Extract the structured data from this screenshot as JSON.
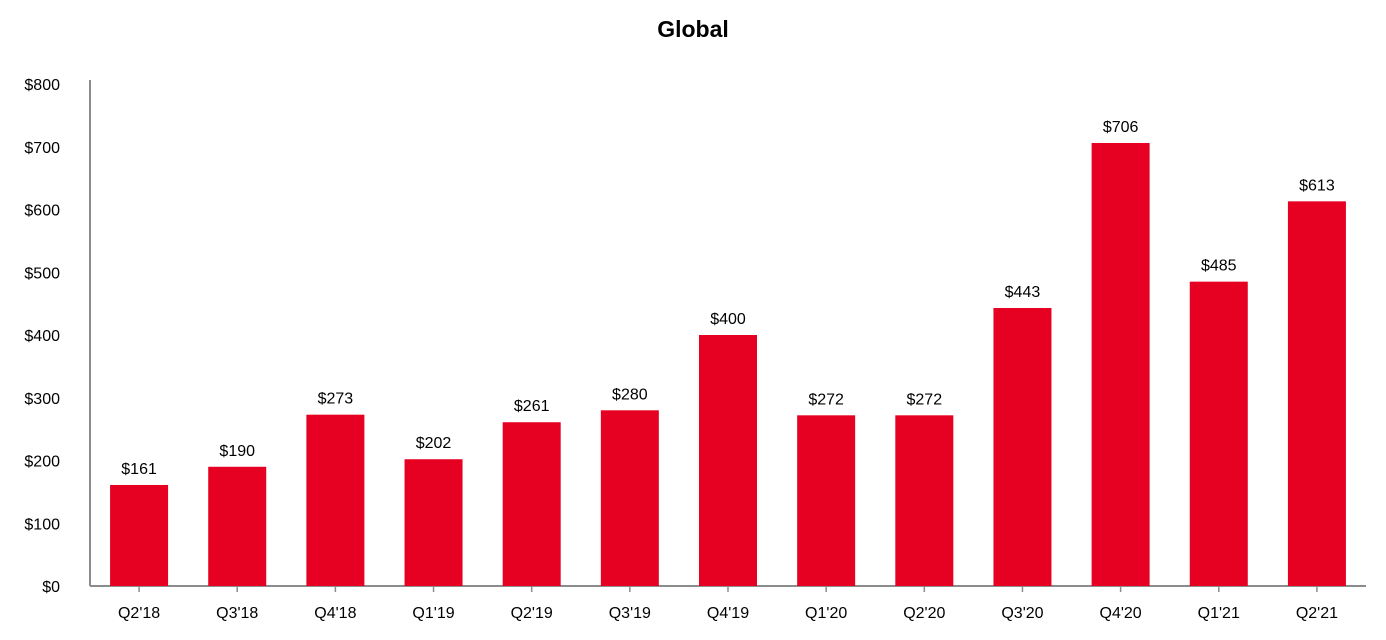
{
  "colors": {
    "bar": "#e60022",
    "axis": "#8c8c8c",
    "text": "#000000"
  },
  "chart_data": {
    "type": "bar",
    "title": "Global",
    "xlabel": "",
    "ylabel": "",
    "categories": [
      "Q2'18",
      "Q3'18",
      "Q4'18",
      "Q1'19",
      "Q2'19",
      "Q3'19",
      "Q4'19",
      "Q1'20",
      "Q2'20",
      "Q3'20",
      "Q4'20",
      "Q1'21",
      "Q2'21"
    ],
    "values": [
      161,
      190,
      273,
      202,
      261,
      280,
      400,
      272,
      272,
      443,
      706,
      485,
      613
    ],
    "data_labels": [
      "$161",
      "$190",
      "$273",
      "$202",
      "$261",
      "$280",
      "$400",
      "$272",
      "$272",
      "$443",
      "$706",
      "$485",
      "$613"
    ],
    "ylim": [
      0,
      800
    ],
    "yticks": [
      0,
      100,
      200,
      300,
      400,
      500,
      600,
      700,
      800
    ],
    "ytick_labels": [
      "$0",
      "$100",
      "$200",
      "$300",
      "$400",
      "$500",
      "$600",
      "$700",
      "$800"
    ],
    "grid": false,
    "legend": "none"
  }
}
